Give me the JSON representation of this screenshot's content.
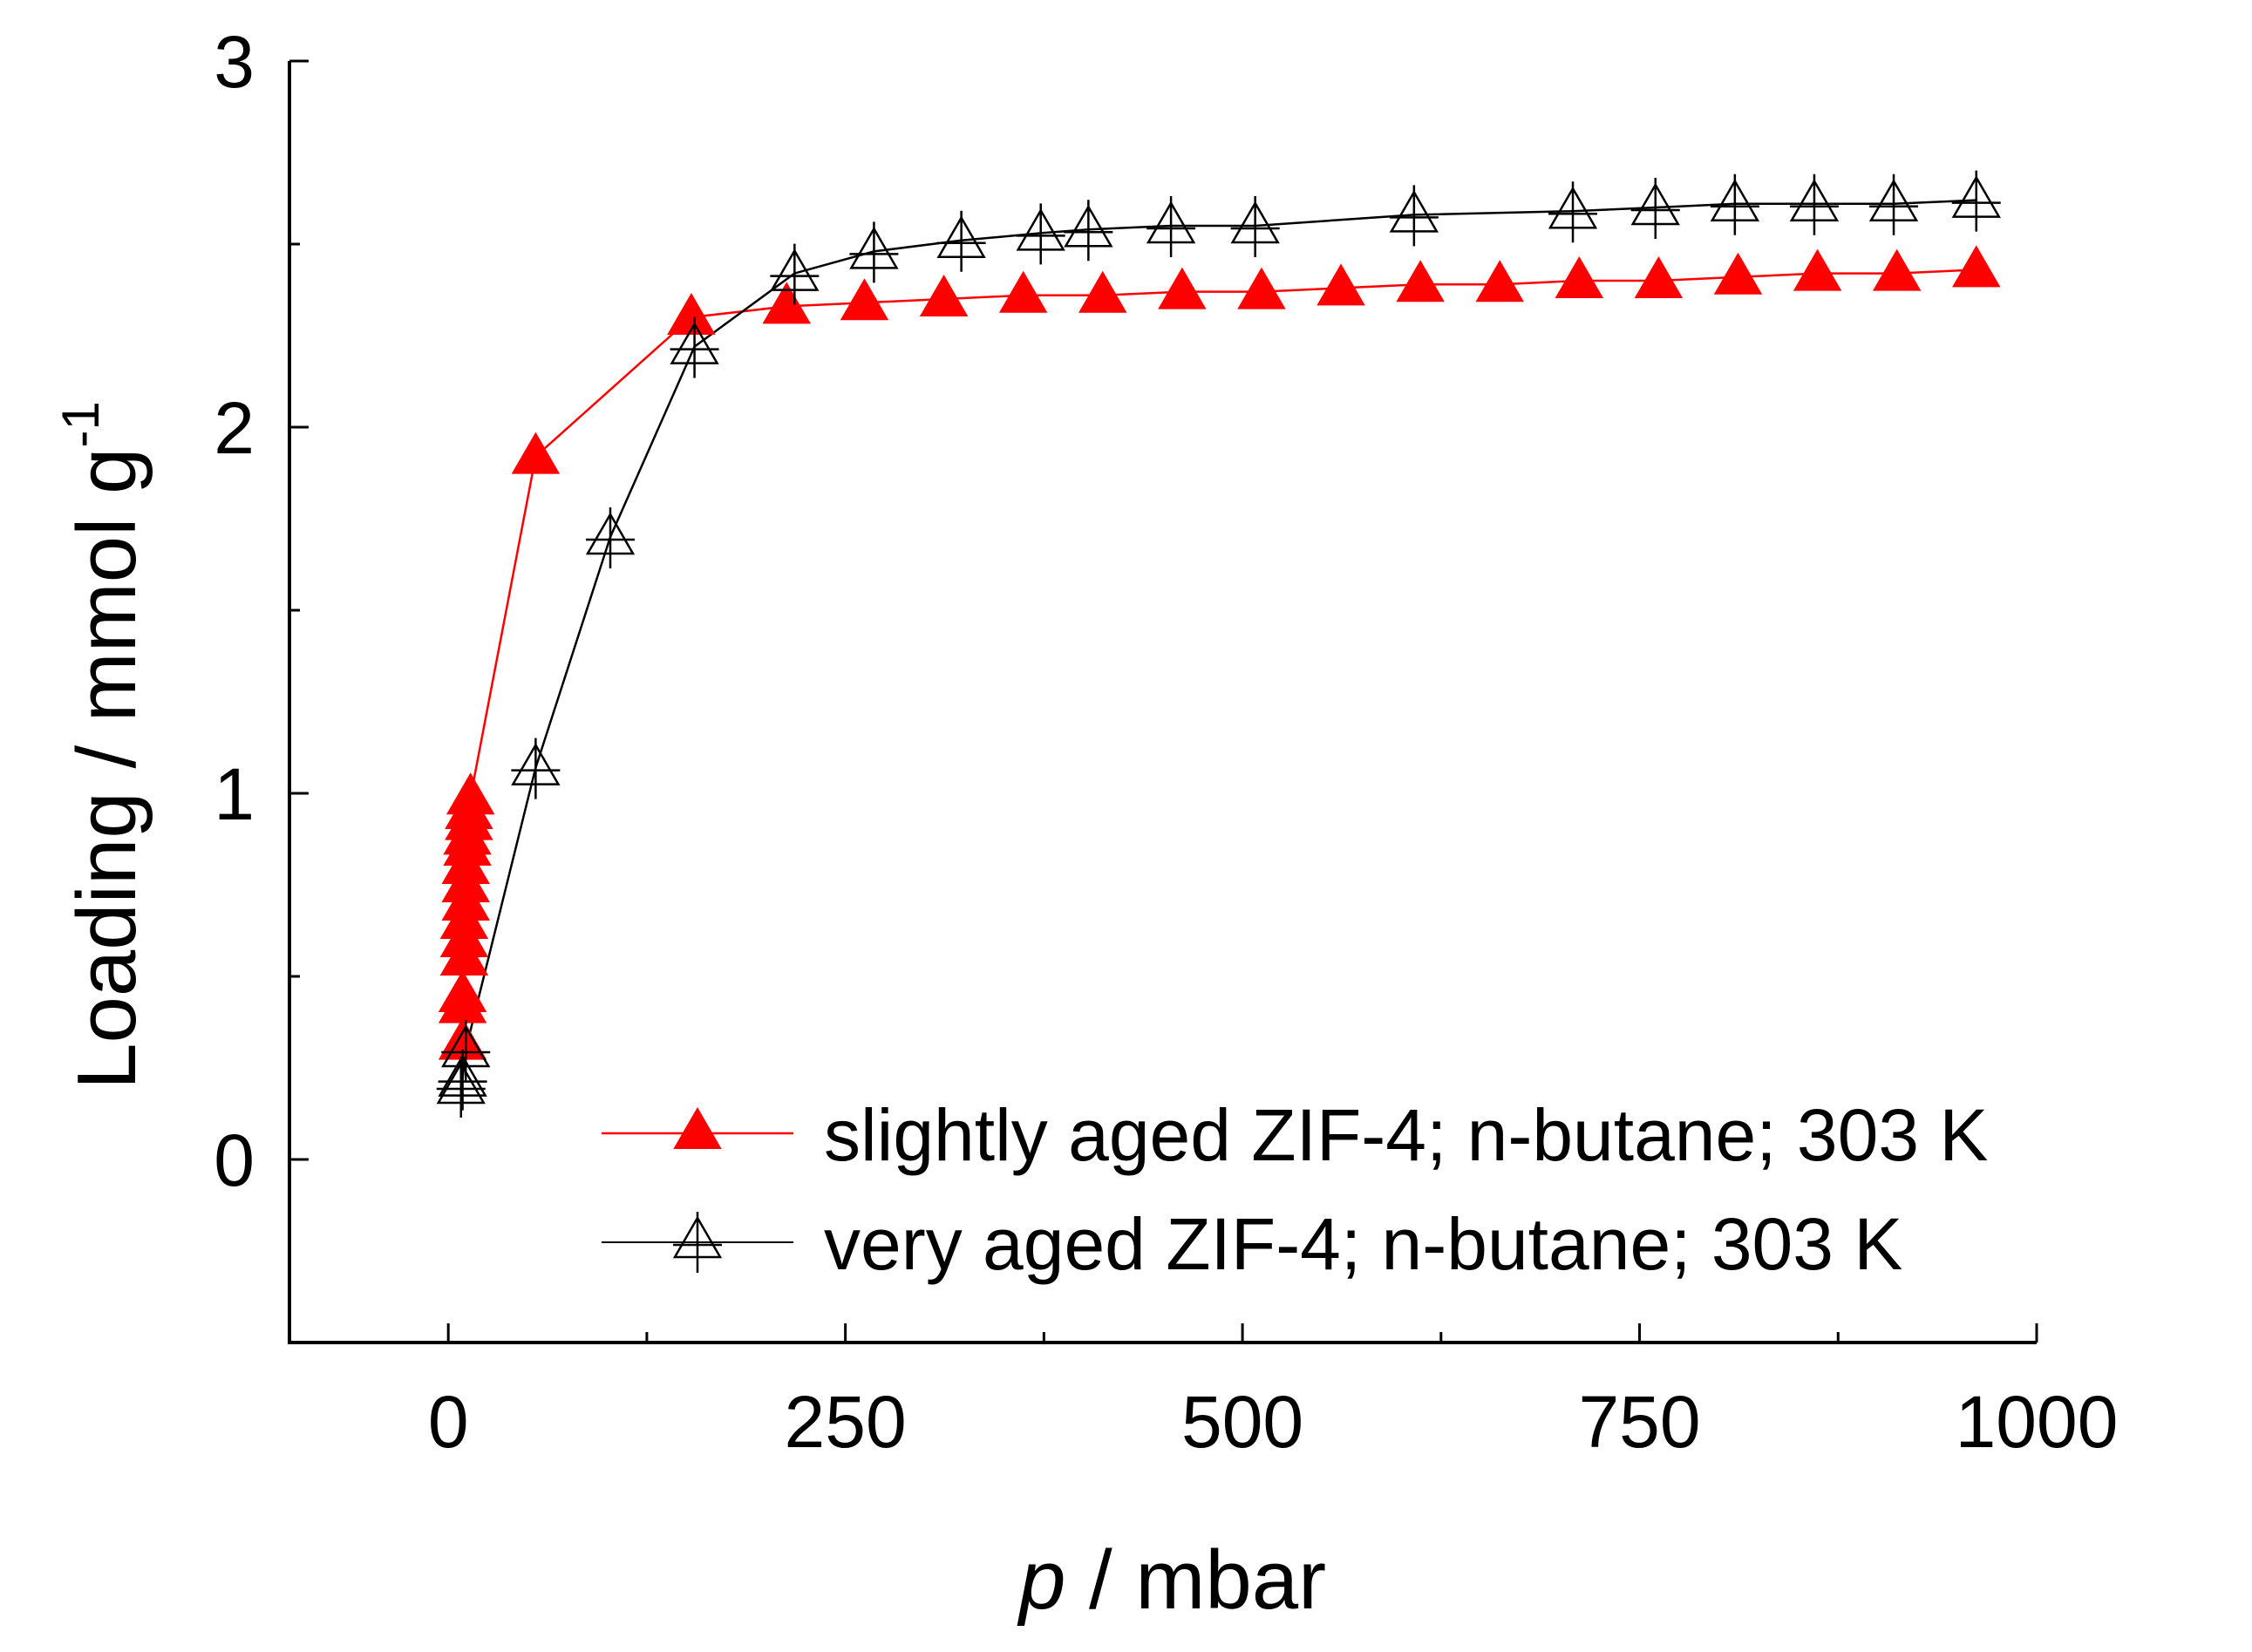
{
  "chart_data": {
    "type": "scatter",
    "title": "",
    "xlabel_italic": "p",
    "xlabel_rest": " / mbar",
    "ylabel": "Loading / mmol g",
    "ylabel_sup": "-1",
    "xlim": [
      -100,
      1000
    ],
    "ylim": [
      -0.5,
      3
    ],
    "x_ticks": [
      0,
      250,
      500,
      750,
      1000
    ],
    "x_tick_labels": [
      "0",
      "250",
      "500",
      "750",
      "1000"
    ],
    "y_ticks": [
      0,
      1,
      2,
      3
    ],
    "y_tick_labels": [
      "0",
      "1",
      "2",
      "3"
    ],
    "x_minor_ticks": [
      125,
      375,
      625,
      875
    ],
    "y_minor_ticks": [
      -0.5,
      0.5,
      1.5,
      2.5
    ],
    "grid": false,
    "legend_position": "bottom-right",
    "series": [
      {
        "name": "slightly aged ZIF-4; n-butane; 303 K",
        "color": "#ff0000",
        "marker": "filled-triangle",
        "x": [
          9,
          9,
          9,
          10,
          10,
          10,
          11,
          11,
          11,
          12,
          12,
          13,
          13,
          14,
          55,
          153,
          213,
          262,
          312,
          362,
          412,
          462,
          512,
          562,
          612,
          662,
          712,
          762,
          812,
          862,
          912,
          962
        ],
        "y": [
          0.32,
          0.42,
          0.45,
          0.55,
          0.6,
          0.65,
          0.7,
          0.75,
          0.8,
          0.85,
          0.88,
          0.92,
          0.95,
          0.99,
          1.92,
          2.3,
          2.33,
          2.34,
          2.35,
          2.36,
          2.36,
          2.37,
          2.37,
          2.38,
          2.39,
          2.39,
          2.4,
          2.4,
          2.41,
          2.42,
          2.42,
          2.43
        ]
      },
      {
        "name": "very aged ZIF-4; n-butane; 303 K",
        "color": "#000000",
        "marker": "open-triangle",
        "x": [
          8,
          9,
          11,
          55,
          102,
          155,
          218,
          268,
          323,
          373,
          403,
          455,
          508,
          608,
          708,
          760,
          810,
          860,
          910,
          962
        ],
        "y": [
          0.2,
          0.22,
          0.3,
          1.07,
          1.7,
          2.22,
          2.42,
          2.48,
          2.51,
          2.53,
          2.54,
          2.55,
          2.55,
          2.58,
          2.59,
          2.6,
          2.61,
          2.61,
          2.61,
          2.62
        ]
      }
    ]
  }
}
